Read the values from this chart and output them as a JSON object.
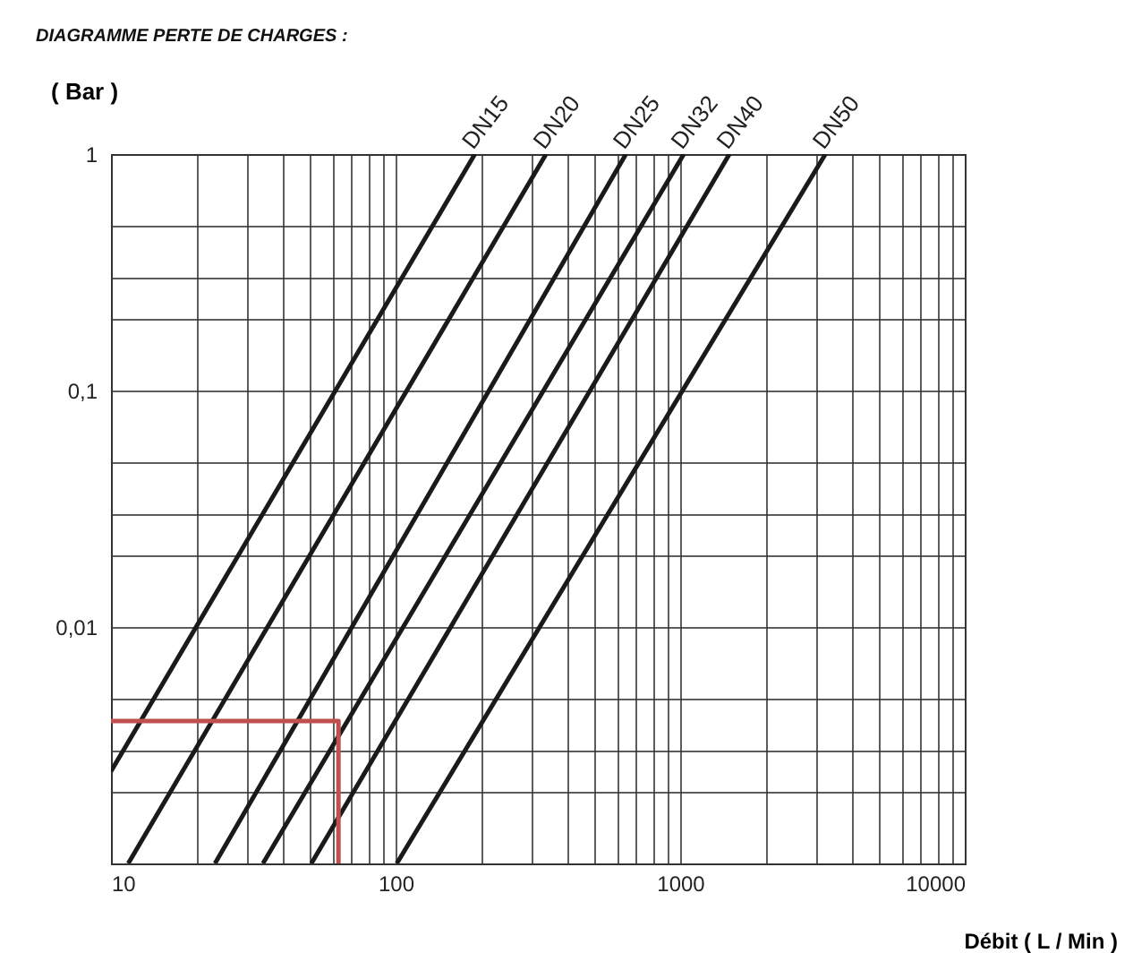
{
  "chart_data": {
    "type": "line",
    "title": "DIAGRAMME PERTE DE CHARGES :",
    "ylabel": "( Bar )",
    "xlabel": "Débit ( L / Min )",
    "log": "xy",
    "grid": true,
    "legend": false,
    "marker": "none",
    "line_style": "solid",
    "xlim": [
      10,
      10000
    ],
    "ylim": [
      0.001,
      1
    ],
    "xticks": [
      10,
      {
        "value": 20,
        "label": null
      },
      {
        "value": 30,
        "label": null
      },
      {
        "value": 40,
        "label": null
      },
      {
        "value": 50,
        "label": null
      },
      {
        "value": 60,
        "label": null
      },
      {
        "value": 70,
        "label": null
      },
      {
        "value": 80,
        "label": null
      },
      {
        "value": 90,
        "label": null
      },
      100,
      {
        "value": 200,
        "label": null
      },
      {
        "value": 300,
        "label": null
      },
      {
        "value": 400,
        "label": null
      },
      {
        "value": 500,
        "label": null
      },
      {
        "value": 600,
        "label": null
      },
      {
        "value": 700,
        "label": null
      },
      {
        "value": 800,
        "label": null
      },
      {
        "value": 900,
        "label": null
      },
      1000,
      {
        "value": 2000,
        "label": null
      },
      {
        "value": 3000,
        "label": null
      },
      {
        "value": 4000,
        "label": null
      },
      {
        "value": 5000,
        "label": null
      },
      {
        "value": 6000,
        "label": null
      },
      {
        "value": 7000,
        "label": null
      },
      {
        "value": 8000,
        "label": null
      },
      {
        "value": 9000,
        "label": null
      },
      10000
    ],
    "yticks": [
      {
        "value": 0.001,
        "label": null
      },
      {
        "value": 0.002,
        "label": null
      },
      {
        "value": 0.003,
        "label": null
      },
      {
        "value": 0.005,
        "label": null
      },
      {
        "value": 0.01,
        "label": "0,01"
      },
      {
        "value": 0.02,
        "label": null
      },
      {
        "value": 0.03,
        "label": null
      },
      {
        "value": 0.05,
        "label": null
      },
      {
        "value": 0.1,
        "label": "0,1"
      },
      {
        "value": 0.2,
        "label": null
      },
      {
        "value": 0.3,
        "label": null
      },
      {
        "value": 0.5,
        "label": null
      },
      {
        "value": 1,
        "label": "1"
      }
    ],
    "series": [
      {
        "name": "DN15",
        "color": "#1a1a1a",
        "x": [
          10,
          190
        ],
        "values": [
          0.00245,
          1
        ]
      },
      {
        "name": "DN20",
        "color": "#1a1a1a",
        "x": [
          11.5,
          338
        ],
        "values": [
          0.001,
          1
        ]
      },
      {
        "name": "DN25",
        "color": "#1a1a1a",
        "x": [
          23.2,
          645
        ],
        "values": [
          0.001,
          1
        ]
      },
      {
        "name": "DN32",
        "color": "#1a1a1a",
        "x": [
          34.2,
          1030
        ],
        "values": [
          0.001,
          1
        ]
      },
      {
        "name": "DN40",
        "color": "#1a1a1a",
        "x": [
          50.6,
          1490
        ],
        "values": [
          0.001,
          1
        ]
      },
      {
        "name": "DN50",
        "color": "#1a1a1a",
        "x": [
          101,
          3240
        ],
        "values": [
          0.001,
          1
        ]
      },
      {
        "color": "#c0504d",
        "x": [
          10,
          63,
          63
        ],
        "values": [
          0.004,
          0.004,
          0.001
        ]
      }
    ]
  }
}
